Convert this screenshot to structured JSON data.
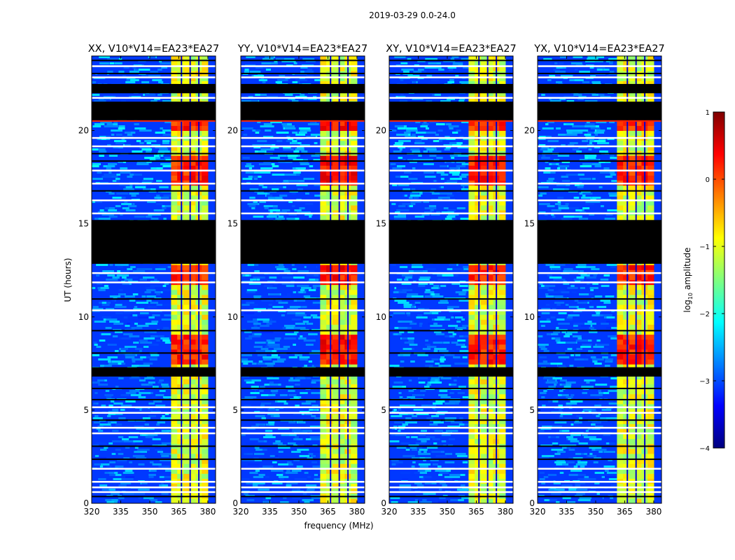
{
  "figure": {
    "suptitle": "2019-03-29 0.0-24.0",
    "ylabel": "UT (hours)",
    "xlabel": "frequency (MHz)"
  },
  "colorbar": {
    "label": "log10 amplitude",
    "label_main": "log",
    "label_sub": "10",
    "label_rest": " amplitude",
    "range": [
      -4,
      1
    ],
    "ticks": [
      1,
      0,
      -1,
      -2,
      -3,
      -4
    ],
    "tick_labels": [
      "1",
      "0",
      "−1",
      "−2",
      "−3",
      "−4"
    ],
    "colormap": [
      "#00007f",
      "#0000ff",
      "#007fff",
      "#00ffff",
      "#7fff7f",
      "#ffff00",
      "#ff7f00",
      "#ff0000",
      "#7f0000"
    ]
  },
  "chart_data": [
    {
      "type": "heatmap",
      "title": "XX, V10*V14=EA23*EA27",
      "x_ticks": [
        320,
        335,
        350,
        365,
        380
      ],
      "x_tick_labels": [
        "320",
        "335",
        "350",
        "365",
        "380"
      ],
      "xlim": [
        320,
        384
      ],
      "y_ticks": [
        0,
        5,
        10,
        15,
        20
      ],
      "y_tick_labels": [
        "0",
        "5",
        "10",
        "15",
        "20"
      ],
      "ylim": [
        0,
        24
      ],
      "xlabel": "",
      "ylabel": "UT (hours)",
      "rfi_band_mhz": [
        361,
        380
      ],
      "rfi_level_log10": [
        -1.5,
        0.5
      ]
    },
    {
      "type": "heatmap",
      "title": "YY, V10*V14=EA23*EA27",
      "x_ticks": [
        320,
        335,
        350,
        365,
        380
      ],
      "x_tick_labels": [
        "320",
        "335",
        "350",
        "365",
        "380"
      ],
      "xlim": [
        320,
        384
      ],
      "y_ticks": [
        0,
        5,
        10,
        15,
        20
      ],
      "y_tick_labels": [
        "0",
        "5",
        "10",
        "15",
        "20"
      ],
      "ylim": [
        0,
        24
      ],
      "xlabel": "frequency (MHz)",
      "ylabel": "",
      "rfi_band_mhz": [
        361,
        380
      ],
      "rfi_level_log10": [
        -1.5,
        0.6
      ]
    },
    {
      "type": "heatmap",
      "title": "XY, V10*V14=EA23*EA27",
      "x_ticks": [
        320,
        335,
        350,
        365,
        380
      ],
      "x_tick_labels": [
        "320",
        "335",
        "350",
        "365",
        "380"
      ],
      "xlim": [
        320,
        384
      ],
      "y_ticks": [
        0,
        5,
        10,
        15,
        20
      ],
      "y_tick_labels": [
        "0",
        "5",
        "10",
        "15",
        "20"
      ],
      "ylim": [
        0,
        24
      ],
      "xlabel": "",
      "ylabel": "",
      "rfi_band_mhz": [
        361,
        380
      ],
      "rfi_level_log10": [
        -1.5,
        0.5
      ]
    },
    {
      "type": "heatmap",
      "title": "YX, V10*V14=EA23*EA27",
      "x_ticks": [
        320,
        335,
        350,
        365,
        380
      ],
      "x_tick_labels": [
        "320",
        "335",
        "350",
        "365",
        "380"
      ],
      "xlim": [
        320,
        384
      ],
      "y_ticks": [
        0,
        5,
        10,
        15,
        20
      ],
      "y_tick_labels": [
        "0",
        "5",
        "10",
        "15",
        "20"
      ],
      "ylim": [
        0,
        24
      ],
      "xlabel": "",
      "ylabel": "",
      "rfi_band_mhz": [
        361,
        380
      ],
      "rfi_level_log10": [
        -1.5,
        0.5
      ]
    }
  ]
}
